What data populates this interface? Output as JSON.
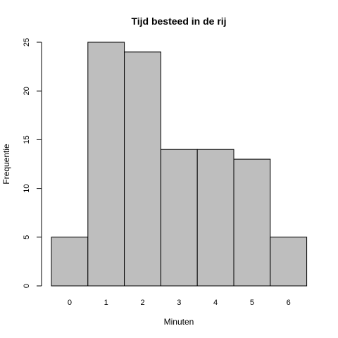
{
  "chart_data": {
    "type": "bar",
    "title": "Tijd besteed in de rij",
    "xlabel": "Minuten",
    "ylabel": "Frequentie",
    "categories": [
      "0",
      "1",
      "2",
      "3",
      "4",
      "5",
      "6"
    ],
    "values": [
      5,
      25,
      24,
      14,
      14,
      13,
      5
    ],
    "ylim": [
      0,
      25
    ],
    "yticks": [
      "0",
      "5",
      "10",
      "15",
      "20",
      "25"
    ],
    "bar_color": "#bebebe",
    "grid": false,
    "legend": "none"
  }
}
